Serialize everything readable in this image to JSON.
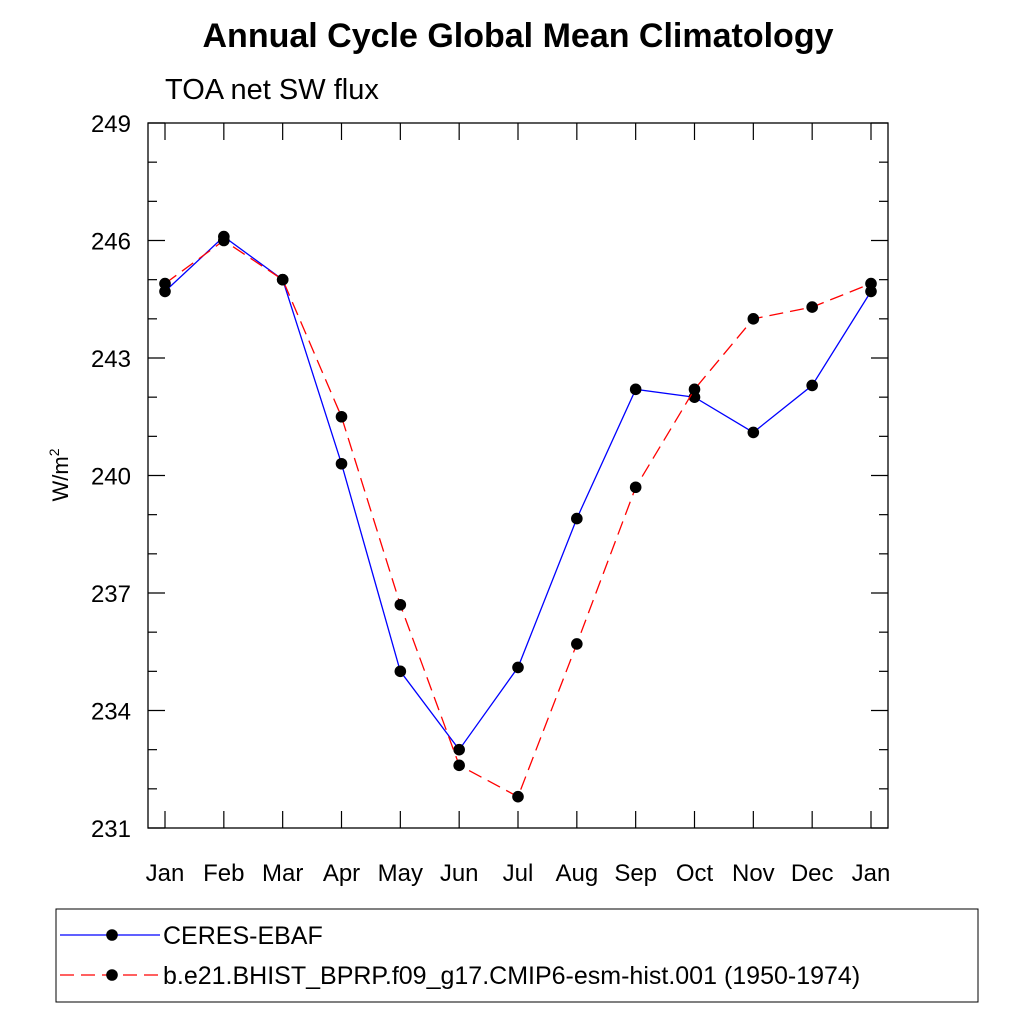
{
  "chart_data": {
    "type": "line",
    "title": "Annual Cycle Global Mean Climatology",
    "subtitle": "TOA net SW flux",
    "xlabel": "",
    "ylabel_main": "W/m",
    "ylabel_sup": "2",
    "categories": [
      "Jan",
      "Feb",
      "Mar",
      "Apr",
      "May",
      "Jun",
      "Jul",
      "Aug",
      "Sep",
      "Oct",
      "Nov",
      "Dec",
      "Jan"
    ],
    "ylim": [
      231,
      249
    ],
    "yticks": [
      231,
      234,
      237,
      240,
      243,
      246,
      249
    ],
    "yminor_step": 1,
    "grid": false,
    "legend_position": "bottom",
    "series": [
      {
        "name": "CERES-EBAF",
        "color": "#0000ff",
        "dash": "solid",
        "values": [
          244.7,
          246.1,
          245.0,
          240.3,
          235.0,
          233.0,
          235.1,
          238.9,
          242.2,
          242.0,
          241.1,
          242.3,
          244.7
        ]
      },
      {
        "name": "b.e21.BHIST_BPRP.f09_g17.CMIP6-esm-hist.001 (1950-1974)",
        "color": "#ff0000",
        "dash": "dashed",
        "values": [
          244.9,
          246.0,
          245.0,
          241.5,
          236.7,
          232.6,
          231.8,
          235.7,
          239.7,
          242.2,
          244.0,
          244.3,
          244.9
        ]
      }
    ]
  }
}
